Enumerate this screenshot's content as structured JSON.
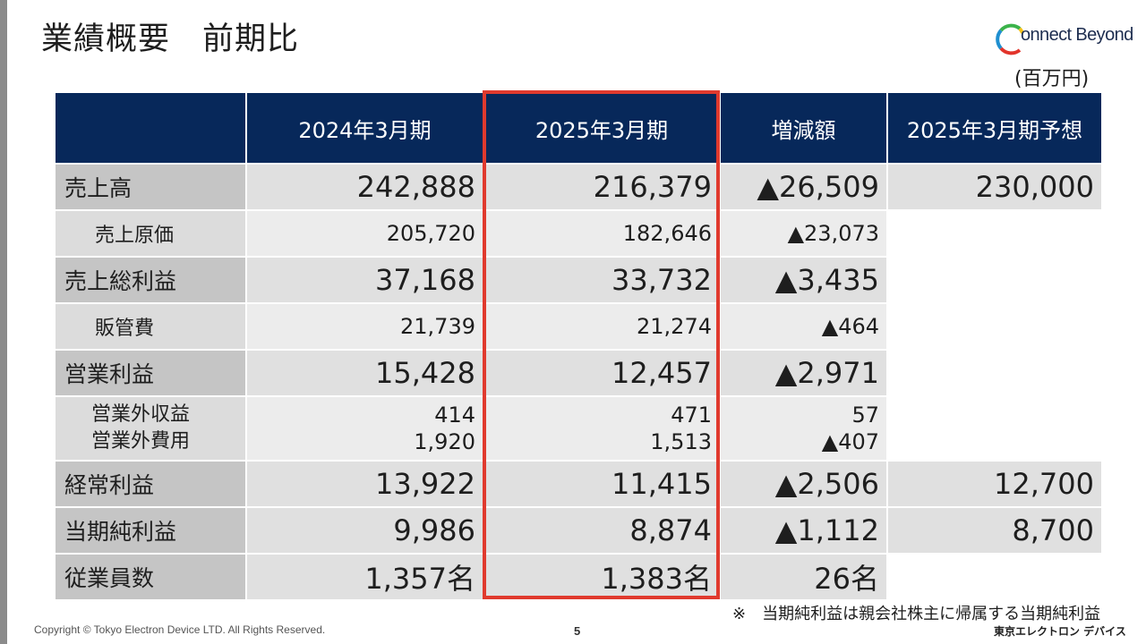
{
  "slide": {
    "title": "業績概要　前期比",
    "unit": "(百万円)",
    "logo_text": "onnect Beyond",
    "footnote": "※　当期純利益は親会社株主に帰属する当期純利益",
    "copyright": "Copyright © Tokyo Electron Device LTD. All Rights Reserved.",
    "page_number": "5",
    "company": "東京エレクトロン デバイス"
  },
  "colors": {
    "header_bg": "#07285a",
    "highlight_border": "#e03a2e",
    "label_bg": "#c5c5c5",
    "value_bg": "#e0e0e0",
    "logo_ring": [
      "#1f8fd0",
      "#3bb34a",
      "#f6c21b",
      "#e2342b"
    ]
  },
  "table": {
    "headers": [
      "",
      "2024年3月期",
      "2025年3月期",
      "増減額",
      "2025年3月期予想"
    ],
    "highlighted_column": "2025年3月期",
    "rows": [
      {
        "label": "売上高",
        "fy2024": "242,888",
        "fy2025": "216,379",
        "change": "▲26,509",
        "forecast": "230,000"
      },
      {
        "label": "売上原価",
        "fy2024": "205,720",
        "fy2025": "182,646",
        "change": "▲23,073",
        "forecast": ""
      },
      {
        "label": "売上総利益",
        "fy2024": "37,168",
        "fy2025": "33,732",
        "change": "▲3,435",
        "forecast": ""
      },
      {
        "label": "販管費",
        "fy2024": "21,739",
        "fy2025": "21,274",
        "change": "▲464",
        "forecast": ""
      },
      {
        "label": "営業利益",
        "fy2024": "15,428",
        "fy2025": "12,457",
        "change": "▲2,971",
        "forecast": ""
      },
      {
        "label": "営業外収益",
        "label2": "営業外費用",
        "fy2024": "414",
        "fy2024_2": "1,920",
        "fy2025": "471",
        "fy2025_2": "1,513",
        "change": "57",
        "change_2": "▲407",
        "forecast": ""
      },
      {
        "label": "経常利益",
        "fy2024": "13,922",
        "fy2025": "11,415",
        "change": "▲2,506",
        "forecast": "12,700"
      },
      {
        "label": "当期純利益",
        "fy2024": "9,986",
        "fy2025": "8,874",
        "change": "▲1,112",
        "forecast": "8,700"
      },
      {
        "label": "従業員数",
        "fy2024": "1,357名",
        "fy2025": "1,383名",
        "change": "26名",
        "forecast": ""
      }
    ]
  }
}
